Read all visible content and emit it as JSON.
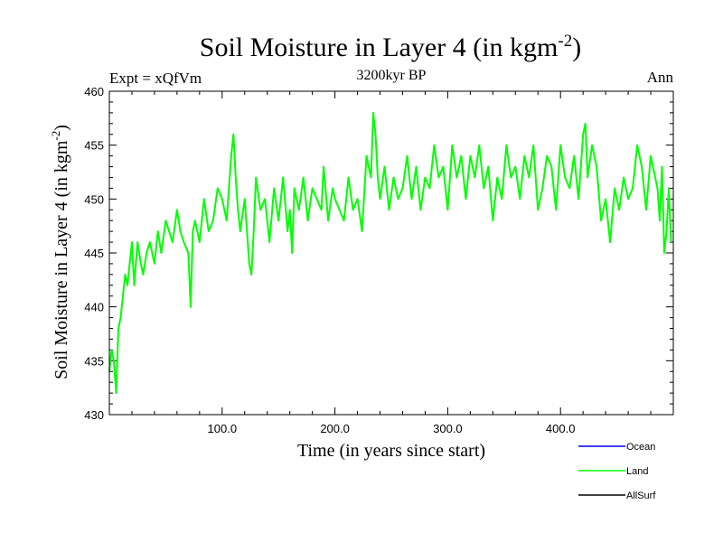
{
  "chart_data": {
    "type": "line",
    "title": "Soil Moisture in Layer 4 (in kgm",
    "title_superscript": "-2",
    "title_suffix": ")",
    "experiment_label": "Expt = xQfVm",
    "period_label": "3200kyr BP",
    "season_label": "Ann",
    "xlabel": "Time (in years since start)",
    "ylabel": "Soil Moisture in Layer 4 (in kgm",
    "ylabel_superscript": "-2",
    "ylabel_suffix": ")",
    "xlim": [
      0,
      500
    ],
    "ylim": [
      430,
      460
    ],
    "xticks": [
      100,
      200,
      300,
      400
    ],
    "xtick_labels": [
      "100.0",
      "200.0",
      "300.0",
      "400.0"
    ],
    "yticks": [
      430,
      435,
      440,
      445,
      450,
      455,
      460
    ],
    "ytick_labels": [
      "430",
      "435",
      "440",
      "445",
      "450",
      "455",
      "460"
    ],
    "legend": [
      {
        "name": "Ocean",
        "color": "#0000ff"
      },
      {
        "name": "Land",
        "color": "#00ff00"
      },
      {
        "name": "AllSurf",
        "color": "#000000"
      }
    ],
    "series": [
      {
        "name": "Land",
        "color": "#00ff00",
        "x": [
          0,
          2,
          4,
          6,
          8,
          10,
          12,
          14,
          16,
          18,
          20,
          22,
          25,
          28,
          30,
          33,
          36,
          40,
          43,
          46,
          50,
          53,
          56,
          60,
          63,
          66,
          70,
          72,
          74,
          76,
          80,
          84,
          88,
          92,
          96,
          100,
          104,
          108,
          110,
          112,
          114,
          116,
          120,
          124,
          126,
          128,
          130,
          134,
          138,
          142,
          146,
          150,
          154,
          158,
          160,
          162,
          164,
          168,
          172,
          176,
          180,
          184,
          188,
          190,
          194,
          198,
          200,
          204,
          208,
          212,
          216,
          220,
          224,
          228,
          232,
          234,
          236,
          238,
          240,
          244,
          248,
          252,
          256,
          260,
          264,
          268,
          272,
          276,
          280,
          284,
          288,
          292,
          296,
          300,
          304,
          308,
          312,
          316,
          320,
          324,
          328,
          332,
          336,
          340,
          344,
          348,
          352,
          356,
          360,
          364,
          368,
          372,
          376,
          380,
          384,
          388,
          392,
          396,
          400,
          404,
          408,
          412,
          416,
          420,
          422,
          424,
          428,
          432,
          436,
          440,
          444,
          448,
          452,
          456,
          460,
          464,
          468,
          472,
          476,
          480,
          484,
          486,
          488,
          490,
          492,
          494,
          496,
          498
        ],
        "values": [
          434,
          436,
          435,
          432,
          438,
          439,
          441,
          443,
          442,
          444,
          446,
          442,
          446,
          444,
          443,
          445,
          446,
          444,
          447,
          445,
          448,
          447,
          446,
          449,
          447,
          446,
          445,
          440,
          447,
          448,
          446,
          450,
          447,
          448,
          451,
          450,
          448,
          454,
          456,
          452,
          449,
          447,
          450,
          444,
          443,
          447,
          452,
          449,
          450,
          446,
          451,
          448,
          452,
          447,
          449,
          445,
          451,
          449,
          452,
          448,
          451,
          450,
          449,
          453,
          448,
          451,
          450,
          449,
          448,
          452,
          449,
          450,
          447,
          454,
          452,
          458,
          456,
          452,
          450,
          453,
          449,
          452,
          450,
          451,
          454,
          450,
          453,
          449,
          452,
          451,
          455,
          452,
          453,
          449,
          455,
          452,
          454,
          450,
          454,
          452,
          455,
          451,
          453,
          448,
          452,
          450,
          455,
          452,
          453,
          450,
          454,
          452,
          455,
          449,
          451,
          454,
          453,
          449,
          455,
          452,
          451,
          454,
          450,
          456,
          457,
          452,
          455,
          453,
          448,
          450,
          446,
          451,
          449,
          452,
          450,
          451,
          455,
          453,
          449,
          454,
          452,
          451,
          448,
          453,
          445,
          447,
          451,
          446
        ]
      }
    ]
  }
}
